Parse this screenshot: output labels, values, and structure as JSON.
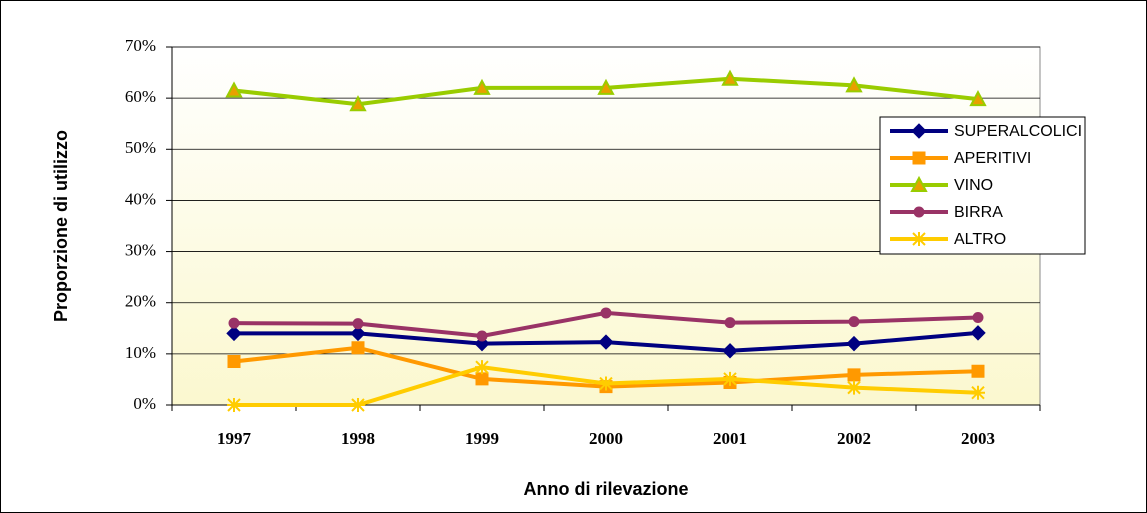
{
  "chart_data": {
    "type": "line",
    "x_label": "Anno di rilevazione",
    "y_label": "Proporzione di utilizzo",
    "categories": [
      "1997",
      "1998",
      "1999",
      "2000",
      "2001",
      "2002",
      "2003"
    ],
    "ylim": [
      0,
      70
    ],
    "yticks": [
      {
        "value": 0,
        "label": "0%"
      },
      {
        "value": 10,
        "label": "10%"
      },
      {
        "value": 20,
        "label": "20%"
      },
      {
        "value": 30,
        "label": "30%"
      },
      {
        "value": 40,
        "label": "40%"
      },
      {
        "value": 50,
        "label": "50%"
      },
      {
        "value": 60,
        "label": "60%"
      },
      {
        "value": 70,
        "label": "70%"
      }
    ],
    "grid": true,
    "legend": "right",
    "series": [
      {
        "name": "SUPERALCOLICI",
        "color": "#000080",
        "marker": "diamond",
        "values": [
          14,
          14,
          12,
          12.3,
          10.6,
          12,
          14.1
        ]
      },
      {
        "name": "APERITIVI",
        "color": "#ff9900",
        "marker": "square",
        "values": [
          8.5,
          11.2,
          5.1,
          3.6,
          4.4,
          5.9,
          6.6
        ]
      },
      {
        "name": "VINO",
        "color": "#99cc00",
        "marker": "triangle",
        "values": [
          61.5,
          58.8,
          62,
          62,
          63.8,
          62.5,
          59.8
        ]
      },
      {
        "name": "BIRRA",
        "color": "#993366",
        "marker": "circle",
        "values": [
          16,
          15.9,
          13.5,
          18,
          16.1,
          16.3,
          17.1
        ]
      },
      {
        "name": "ALTRO",
        "color": "#ffcc00",
        "marker": "star",
        "values": [
          0,
          0,
          7.4,
          4.2,
          5.1,
          3.4,
          2.4
        ]
      }
    ]
  }
}
